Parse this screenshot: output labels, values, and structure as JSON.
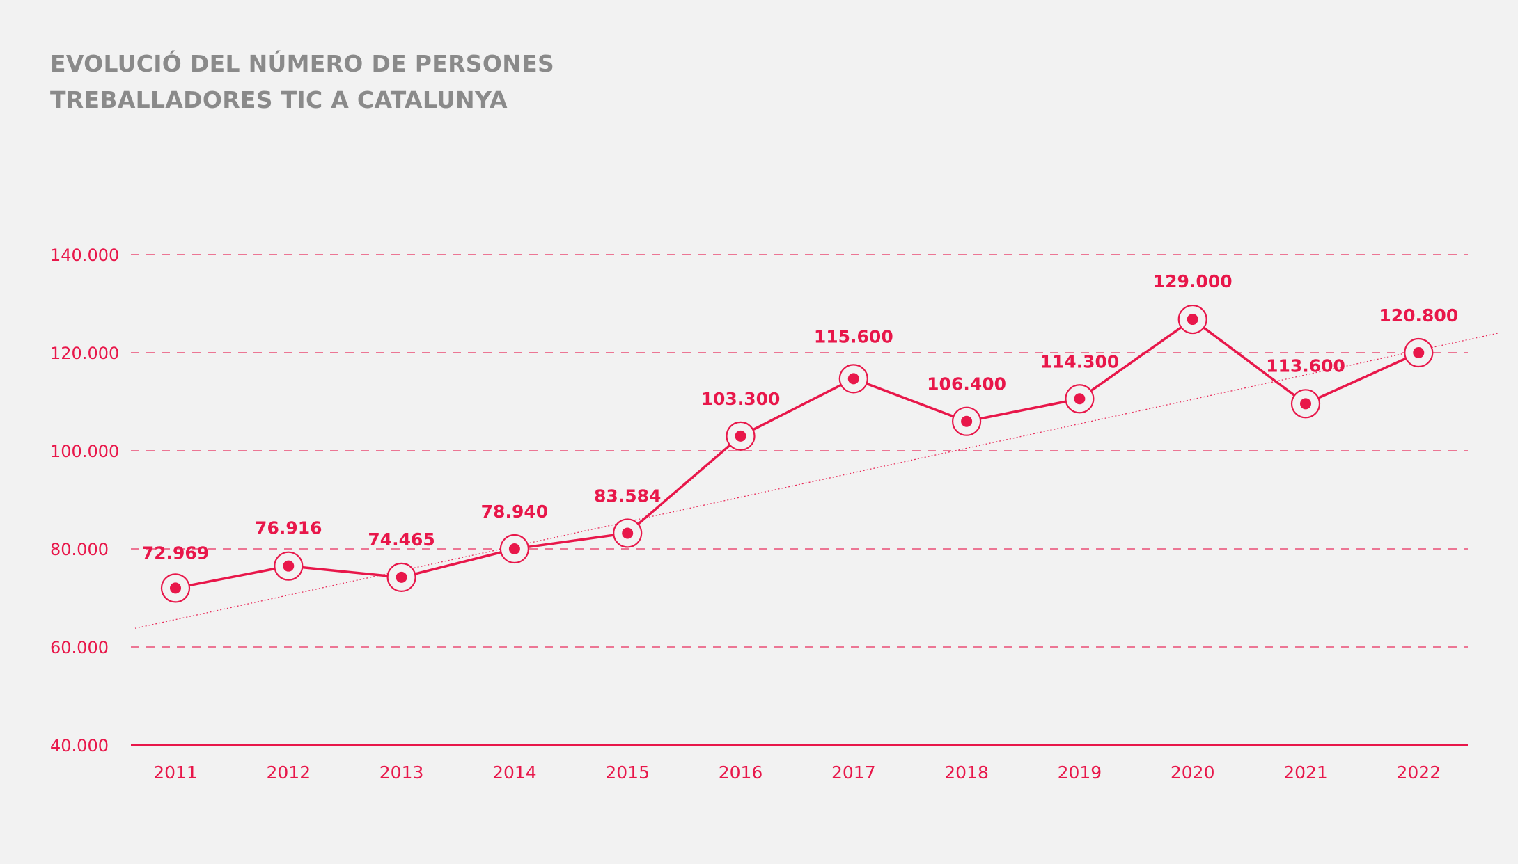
{
  "chart_data": {
    "type": "line",
    "title_lines": [
      "EVOLUCIÓ DEL NÚMERO DE PERSONES",
      "TREBALLADORES TIC A CATALUNYA"
    ],
    "xlabel": "",
    "ylabel": "",
    "categories": [
      "2011",
      "2012",
      "2013",
      "2014",
      "2015",
      "2016",
      "2017",
      "2018",
      "2019",
      "2020",
      "2021",
      "2022"
    ],
    "series": [
      {
        "values": [
          72969,
          76916,
          74465,
          78940,
          83584,
          103300,
          115600,
          106400,
          114300,
          129000,
          113600,
          120800
        ],
        "labels": [
          "72.969",
          "76.916",
          "74.465",
          "78.940",
          "83.584",
          "103.300",
          "115.600",
          "106.400",
          "114.300",
          "129.000",
          "113.600",
          "120.800"
        ]
      }
    ],
    "plotted_values": [
      72000,
      76500,
      74200,
      80000,
      83200,
      103000,
      114700,
      106000,
      110600,
      126800,
      109600,
      120000
    ],
    "trendline": {
      "start": 63800,
      "end": 124000
    },
    "ylim": [
      40000,
      140000
    ],
    "yticks": [
      40000,
      60000,
      80000,
      100000,
      120000,
      140000
    ],
    "ytick_labels": [
      "40.000",
      "60.000",
      "80.000",
      "100.000",
      "120.000",
      "140.000"
    ],
    "grid": true,
    "colors": {
      "accent": "#e8174a",
      "background": "#f2f2f2",
      "title": "#8a8a8a"
    }
  }
}
